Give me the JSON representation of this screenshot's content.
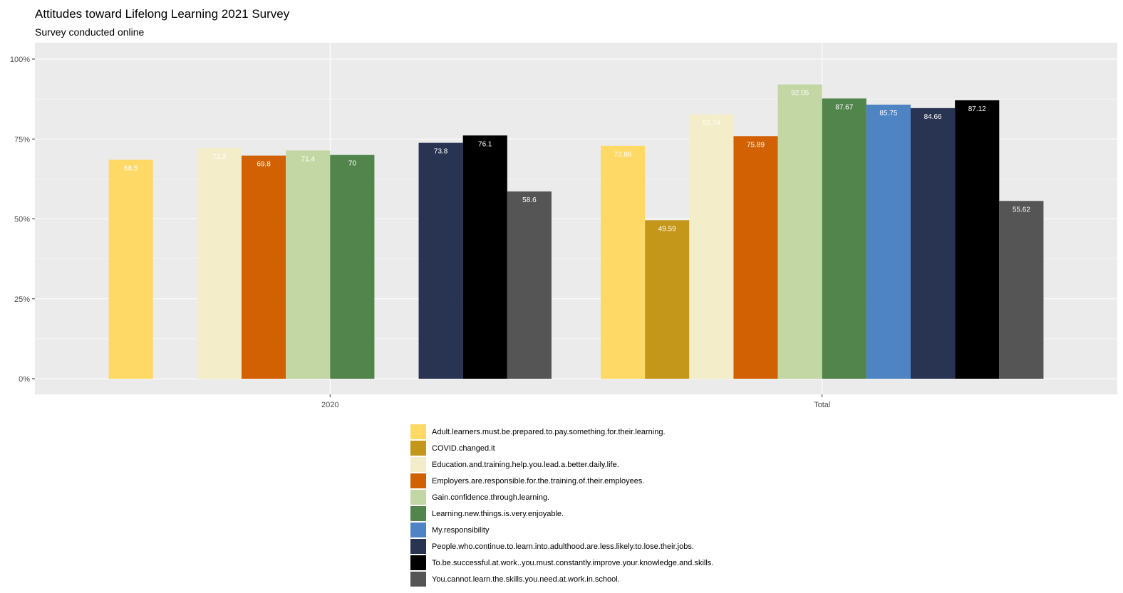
{
  "chart_data": {
    "type": "bar",
    "title": "Attitudes toward Lifelong Learning 2021 Survey",
    "subtitle": "Survey conducted online",
    "xlabel": "",
    "ylabel": "",
    "ylim": [
      0,
      100
    ],
    "y_ticks": [
      "0%",
      "25%",
      "50%",
      "75%",
      "100%"
    ],
    "grid": true,
    "legend_position": "bottom",
    "categories": [
      "2020",
      "Total"
    ],
    "series": [
      {
        "name": "Adult.learners.must.be.prepared.to.pay.something.for.their.learning.",
        "color": "#FFD966",
        "values": [
          68.5,
          72.88
        ],
        "labels": [
          "68.5",
          "72.88"
        ]
      },
      {
        "name": "COVID.changed.it",
        "color": "#C4961A",
        "values": [
          null,
          49.59
        ],
        "labels": [
          "",
          "49.59"
        ]
      },
      {
        "name": "Education.and.training.help.you.lead.a.better.daily.life.",
        "color": "#F4EDCA",
        "values": [
          72.2,
          82.74
        ],
        "labels": [
          "72.2",
          "82.74"
        ]
      },
      {
        "name": "Employers.are.responsible.for.the.training.of.their.employees.",
        "color": "#D16103",
        "values": [
          69.8,
          75.89
        ],
        "labels": [
          "69.8",
          "75.89"
        ]
      },
      {
        "name": "Gain.confidence.through.learning.",
        "color": "#C3D7A4",
        "values": [
          71.4,
          92.05
        ],
        "labels": [
          "71.4",
          "92.05"
        ]
      },
      {
        "name": "Learning.new.things.is.very.enjoyable.",
        "color": "#52854C",
        "values": [
          70,
          87.67
        ],
        "labels": [
          "70",
          "87.67"
        ]
      },
      {
        "name": "My.responsibility",
        "color": "#4E84C4",
        "values": [
          null,
          85.75
        ],
        "labels": [
          "",
          "85.75"
        ]
      },
      {
        "name": "People.who.continue.to.learn.into.adulthood.are.less.likely.to.lose.their.jobs.",
        "color": "#293352",
        "values": [
          73.8,
          84.66
        ],
        "labels": [
          "73.8",
          "84.66"
        ]
      },
      {
        "name": "To.be.successful.at.work..you.must.constantly.improve.your.knowledge.and.skills.",
        "color": "#000000",
        "values": [
          76.1,
          87.12
        ],
        "labels": [
          "76.1",
          "87.12"
        ]
      },
      {
        "name": "You.cannot.learn.the.skills.you.need.at.work.in.school.",
        "color": "#555555",
        "values": [
          58.6,
          55.62
        ],
        "labels": [
          "58.6",
          "55.62"
        ]
      }
    ]
  }
}
